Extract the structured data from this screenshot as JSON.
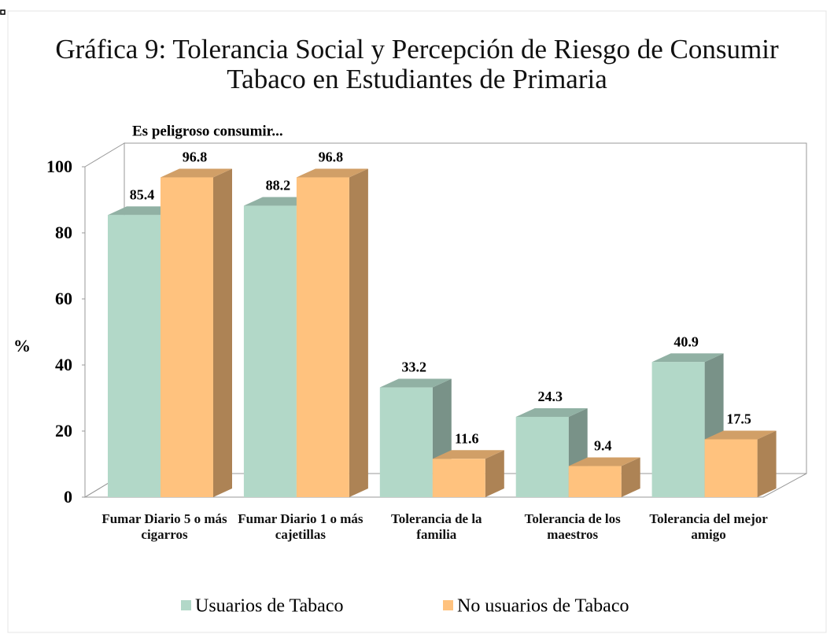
{
  "chart_data": {
    "type": "bar3d",
    "title": "Gráfica 9: Tolerancia Social y Percepción de Riesgo de Consumir Tabaco en Estudiantes de Primaria",
    "annotation": "Es peligroso consumir...",
    "y_label": "%",
    "categories": [
      "Fumar Diario 5 o más cigarros",
      "Fumar Diario 1 o más cajetillas",
      "Tolerancia de la familia",
      "Tolerancia de los maestros",
      "Tolerancia del mejor amigo"
    ],
    "series": [
      {
        "name": "Usuarios de Tabaco",
        "color": "#b2d8c8",
        "values": [
          85.4,
          88.2,
          33.2,
          24.3,
          40.9
        ]
      },
      {
        "name": "No usuarios de Tabaco",
        "color": "#ffc27e",
        "values": [
          96.8,
          96.8,
          11.6,
          9.4,
          17.5
        ]
      }
    ],
    "ylim": [
      0,
      100
    ],
    "yticks": [
      0,
      20,
      40,
      60,
      80,
      100
    ],
    "legend": "bottom"
  }
}
